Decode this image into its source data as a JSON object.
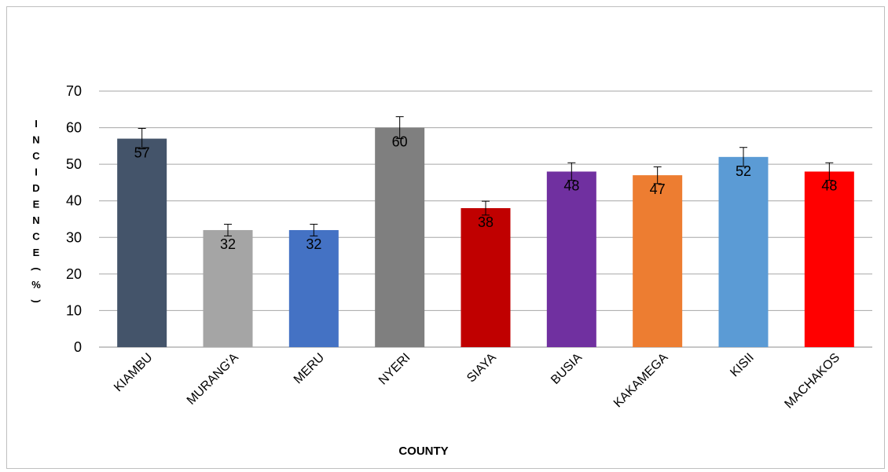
{
  "chart_data": {
    "type": "bar",
    "categories": [
      "KIAMBU",
      "MURANG'A",
      "MERU",
      "NYERI",
      "SIAYA",
      "BUSIA",
      "KAKAMEGA",
      "KISII",
      "MACHAKOS"
    ],
    "values": [
      57,
      32,
      32,
      60,
      38,
      48,
      47,
      52,
      48
    ],
    "error": [
      2.8,
      1.6,
      1.6,
      3.0,
      1.9,
      2.4,
      2.3,
      2.6,
      2.4
    ],
    "colors": [
      "#44546a",
      "#a5a5a5",
      "#4472c4",
      "#7f7f7f",
      "#c00000",
      "#7030a0",
      "#ed7d31",
      "#5b9bd5",
      "#ff0000"
    ],
    "data_labels": [
      "57",
      "32",
      "32",
      "60",
      "38",
      "48",
      "47",
      "52",
      "48"
    ],
    "xlabel": "COUNTY",
    "ylabel": "INCIDENCE(%)",
    "ylim": [
      0,
      70
    ],
    "yticks": [
      "0",
      "10",
      "20",
      "30",
      "40",
      "50",
      "60",
      "70"
    ],
    "grid": true,
    "legend": "none"
  }
}
